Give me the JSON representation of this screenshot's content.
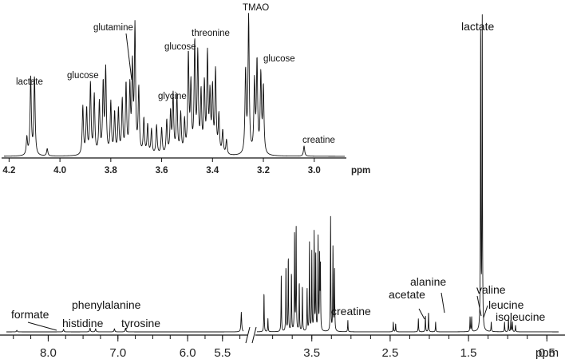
{
  "chart_data": [
    {
      "type": "line",
      "title": "",
      "xlabel": "ppm",
      "ylabel": "",
      "xlim": [
        4.22,
        2.88
      ],
      "x_reversed": true,
      "grid": false,
      "x_ticks": [
        "4.2",
        "4.0",
        "3.8",
        "3.6",
        "3.4",
        "3.2",
        "3.0"
      ],
      "tick_values": [
        4.2,
        4.0,
        3.8,
        3.6,
        3.4,
        3.2,
        3.0
      ],
      "annotations": [
        {
          "text": "lactate",
          "x": 4.11
        },
        {
          "text": "glucose",
          "x": 3.89
        },
        {
          "text": "glutamine",
          "x": 3.76
        },
        {
          "text": "glucose",
          "x": 3.53
        },
        {
          "text": "glycine",
          "x": 3.56
        },
        {
          "text": "threonine",
          "x": 3.45
        },
        {
          "text": "TMAO",
          "x": 3.26
        },
        {
          "text": "glucose",
          "x": 3.22
        },
        {
          "text": "creatine",
          "x": 3.04
        }
      ],
      "peaks": [
        {
          "x": 4.13,
          "h": 0.12
        },
        {
          "x": 4.115,
          "h": 0.53
        },
        {
          "x": 4.1,
          "h": 0.53
        },
        {
          "x": 4.05,
          "h": 0.05
        },
        {
          "x": 3.91,
          "h": 0.33
        },
        {
          "x": 3.895,
          "h": 0.31
        },
        {
          "x": 3.88,
          "h": 0.48
        },
        {
          "x": 3.865,
          "h": 0.4
        },
        {
          "x": 3.845,
          "h": 0.35
        },
        {
          "x": 3.83,
          "h": 0.47
        },
        {
          "x": 3.82,
          "h": 0.57
        },
        {
          "x": 3.8,
          "h": 0.35
        },
        {
          "x": 3.785,
          "h": 0.28
        },
        {
          "x": 3.77,
          "h": 0.3
        },
        {
          "x": 3.755,
          "h": 0.36
        },
        {
          "x": 3.74,
          "h": 0.47
        },
        {
          "x": 3.725,
          "h": 0.44
        },
        {
          "x": 3.715,
          "h": 0.58
        },
        {
          "x": 3.705,
          "h": 0.85
        },
        {
          "x": 3.69,
          "h": 0.44
        },
        {
          "x": 3.67,
          "h": 0.24
        },
        {
          "x": 3.655,
          "h": 0.2
        },
        {
          "x": 3.64,
          "h": 0.17
        },
        {
          "x": 3.62,
          "h": 0.2
        },
        {
          "x": 3.6,
          "h": 0.18
        },
        {
          "x": 3.58,
          "h": 0.23
        },
        {
          "x": 3.565,
          "h": 0.28
        },
        {
          "x": 3.555,
          "h": 0.4
        },
        {
          "x": 3.54,
          "h": 0.4
        },
        {
          "x": 3.525,
          "h": 0.27
        },
        {
          "x": 3.51,
          "h": 0.22
        },
        {
          "x": 3.495,
          "h": 0.67
        },
        {
          "x": 3.485,
          "h": 0.45
        },
        {
          "x": 3.47,
          "h": 0.74
        },
        {
          "x": 3.458,
          "h": 0.66
        },
        {
          "x": 3.445,
          "h": 0.4
        },
        {
          "x": 3.432,
          "h": 0.46
        },
        {
          "x": 3.42,
          "h": 0.66
        },
        {
          "x": 3.41,
          "h": 0.38
        },
        {
          "x": 3.4,
          "h": 0.43
        },
        {
          "x": 3.388,
          "h": 0.56
        },
        {
          "x": 3.375,
          "h": 0.26
        },
        {
          "x": 3.36,
          "h": 0.16
        },
        {
          "x": 3.345,
          "h": 0.1
        },
        {
          "x": 3.27,
          "h": 0.56
        },
        {
          "x": 3.258,
          "h": 0.93
        },
        {
          "x": 3.235,
          "h": 0.48
        },
        {
          "x": 3.225,
          "h": 0.62
        },
        {
          "x": 3.21,
          "h": 0.53
        },
        {
          "x": 3.2,
          "h": 0.45
        },
        {
          "x": 3.04,
          "h": 0.07
        }
      ]
    },
    {
      "type": "line",
      "title": "",
      "xlabel": "ppm",
      "ylabel": "",
      "x_reversed": true,
      "axis_break": {
        "from": 5.2,
        "to": 4.2
      },
      "grid": false,
      "x_ticks": [
        "8.0",
        "7.0",
        "6.0",
        "5.5",
        "3.5",
        "2.5",
        "1.5",
        "0.5"
      ],
      "tick_values": [
        8.0,
        7.0,
        6.0,
        5.5,
        3.5,
        2.5,
        1.5,
        0.5
      ],
      "annotations": [
        {
          "text": "formate",
          "x": 8.45
        },
        {
          "text": "histidine",
          "x": 7.78
        },
        {
          "text": "phenylalanine",
          "x": 7.35
        },
        {
          "text": "tyrosine",
          "x": 6.89
        },
        {
          "text": "creatine",
          "x": 3.04
        },
        {
          "text": "acetate",
          "x": 1.92
        },
        {
          "text": "alanine",
          "x": 1.48
        },
        {
          "text": "lactate",
          "x": 1.33
        },
        {
          "text": "valine",
          "x": 1.0
        },
        {
          "text": "leucine",
          "x": 0.95
        },
        {
          "text": "isoleucine",
          "x": 0.9
        }
      ],
      "peaks": [
        {
          "x": 8.45,
          "h": 0.005
        },
        {
          "x": 7.78,
          "h": 0.008
        },
        {
          "x": 7.4,
          "h": 0.012
        },
        {
          "x": 7.32,
          "h": 0.01
        },
        {
          "x": 7.05,
          "h": 0.01
        },
        {
          "x": 6.89,
          "h": 0.012
        },
        {
          "x": 5.23,
          "h": 0.06
        },
        {
          "x": 4.11,
          "h": 0.12
        },
        {
          "x": 4.06,
          "h": 0.04
        },
        {
          "x": 3.89,
          "h": 0.17
        },
        {
          "x": 3.83,
          "h": 0.2
        },
        {
          "x": 3.8,
          "h": 0.23
        },
        {
          "x": 3.76,
          "h": 0.18
        },
        {
          "x": 3.72,
          "h": 0.3
        },
        {
          "x": 3.7,
          "h": 0.32
        },
        {
          "x": 3.66,
          "h": 0.15
        },
        {
          "x": 3.62,
          "h": 0.14
        },
        {
          "x": 3.56,
          "h": 0.13
        },
        {
          "x": 3.53,
          "h": 0.27
        },
        {
          "x": 3.5,
          "h": 0.24
        },
        {
          "x": 3.47,
          "h": 0.3
        },
        {
          "x": 3.45,
          "h": 0.24
        },
        {
          "x": 3.42,
          "h": 0.29
        },
        {
          "x": 3.4,
          "h": 0.22
        },
        {
          "x": 3.39,
          "h": 0.19
        },
        {
          "x": 3.26,
          "h": 0.35
        },
        {
          "x": 3.23,
          "h": 0.26
        },
        {
          "x": 3.21,
          "h": 0.19
        },
        {
          "x": 3.04,
          "h": 0.035
        },
        {
          "x": 2.46,
          "h": 0.03
        },
        {
          "x": 2.43,
          "h": 0.025
        },
        {
          "x": 2.14,
          "h": 0.04
        },
        {
          "x": 2.05,
          "h": 0.05
        },
        {
          "x": 2.01,
          "h": 0.06
        },
        {
          "x": 1.92,
          "h": 0.03
        },
        {
          "x": 1.48,
          "h": 0.045
        },
        {
          "x": 1.46,
          "h": 0.045
        },
        {
          "x": 1.345,
          "h": 0.95
        },
        {
          "x": 1.325,
          "h": 0.95
        },
        {
          "x": 1.21,
          "h": 0.03
        },
        {
          "x": 1.04,
          "h": 0.03
        },
        {
          "x": 0.99,
          "h": 0.04
        },
        {
          "x": 0.96,
          "h": 0.035
        },
        {
          "x": 0.94,
          "h": 0.03
        },
        {
          "x": 0.9,
          "h": 0.02
        }
      ]
    }
  ]
}
